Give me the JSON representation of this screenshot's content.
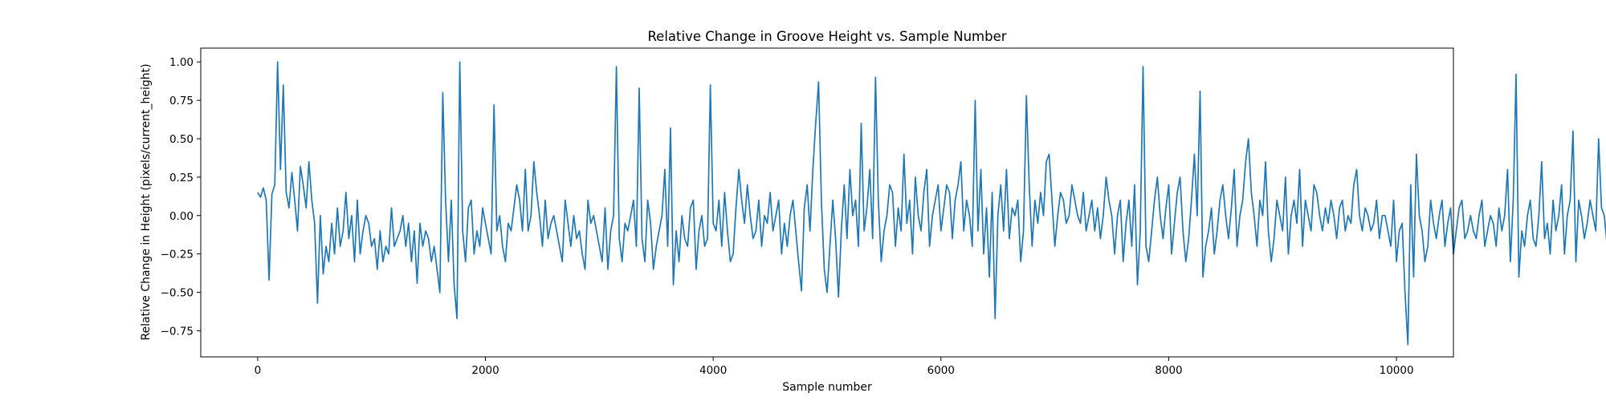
{
  "chart_data": {
    "type": "line",
    "title": "Relative Change in Groove Height vs. Sample Number",
    "xlabel": "Sample number",
    "ylabel": "Relative Change in Height (pixels/current_height)",
    "xlim": [
      -500,
      10500
    ],
    "ylim": [
      -0.92,
      1.09
    ],
    "x_ticks": [
      0,
      2000,
      4000,
      6000,
      8000,
      10000
    ],
    "x_tick_labels": [
      "0",
      "2000",
      "4000",
      "6000",
      "8000",
      "10000"
    ],
    "y_ticks": [
      1.0,
      0.75,
      0.5,
      0.25,
      0.0,
      -0.25,
      -0.5,
      -0.75
    ],
    "y_tick_labels": [
      "1.00",
      "0.75",
      "0.50",
      "0.25",
      "0.00",
      "−0.25",
      "−0.50",
      "−0.75"
    ],
    "grid": false,
    "legend": "none",
    "line_color": "#1f77b4",
    "series": [
      {
        "x_start": 0,
        "x_step": 25,
        "values": [
          0.15,
          0.12,
          0.18,
          0.1,
          -0.42,
          0.14,
          0.2,
          1.0,
          0.3,
          0.85,
          0.15,
          0.05,
          0.28,
          0.1,
          -0.1,
          0.32,
          0.2,
          0.05,
          0.35,
          0.1,
          -0.05,
          -0.57,
          0.0,
          -0.38,
          -0.2,
          -0.3,
          -0.05,
          -0.25,
          0.05,
          -0.2,
          -0.1,
          0.15,
          -0.15,
          0.0,
          -0.3,
          0.1,
          -0.25,
          -0.1,
          0.0,
          -0.05,
          -0.2,
          -0.15,
          -0.35,
          -0.1,
          -0.3,
          -0.2,
          -0.25,
          0.05,
          -0.2,
          -0.15,
          -0.1,
          0.0,
          -0.2,
          -0.05,
          -0.3,
          -0.1,
          -0.44,
          -0.05,
          -0.2,
          -0.1,
          -0.15,
          -0.3,
          -0.2,
          -0.35,
          -0.5,
          0.8,
          0.1,
          -0.3,
          0.1,
          -0.45,
          -0.67,
          1.0,
          -0.1,
          -0.3,
          0.05,
          0.1,
          -0.25,
          -0.1,
          -0.2,
          0.05,
          -0.05,
          -0.15,
          -0.25,
          0.72,
          -0.1,
          0.0,
          -0.2,
          -0.3,
          -0.05,
          -0.1,
          0.05,
          0.2,
          0.1,
          -0.1,
          0.3,
          -0.1,
          0.0,
          0.35,
          0.15,
          0.0,
          -0.2,
          0.1,
          -0.15,
          -0.05,
          0.0,
          -0.1,
          -0.2,
          -0.3,
          0.1,
          -0.05,
          -0.2,
          0.0,
          -0.15,
          -0.1,
          -0.25,
          -0.35,
          0.1,
          -0.05,
          0.0,
          -0.1,
          -0.2,
          -0.3,
          0.05,
          -0.35,
          -0.1,
          0.0,
          0.97,
          -0.15,
          -0.3,
          -0.05,
          -0.1,
          0.0,
          0.1,
          -0.2,
          0.83,
          -0.15,
          -0.3,
          0.1,
          -0.05,
          -0.35,
          -0.2,
          -0.1,
          0.0,
          0.3,
          -0.2,
          0.57,
          -0.45,
          -0.1,
          -0.3,
          0.0,
          -0.15,
          -0.2,
          0.05,
          0.1,
          -0.35,
          -0.1,
          0.0,
          -0.2,
          -0.15,
          0.85,
          -0.05,
          -0.1,
          0.1,
          -0.2,
          0.15,
          -0.1,
          -0.3,
          -0.25,
          0.05,
          0.3,
          0.1,
          -0.05,
          0.2,
          0.0,
          -0.15,
          -0.1,
          0.1,
          -0.2,
          0.0,
          -0.05,
          0.15,
          -0.1,
          0.0,
          0.1,
          -0.25,
          -0.05,
          -0.2,
          0.0,
          0.1,
          -0.1,
          -0.3,
          -0.49,
          0.05,
          0.2,
          -0.1,
          0.3,
          0.6,
          0.87,
          0.1,
          -0.35,
          -0.5,
          -0.2,
          0.1,
          -0.15,
          -0.53,
          -0.1,
          0.2,
          -0.15,
          0.3,
          0.0,
          0.1,
          -0.2,
          0.6,
          -0.1,
          0.05,
          0.3,
          -0.15,
          0.9,
          0.1,
          -0.3,
          -0.1,
          0.0,
          0.2,
          0.15,
          -0.2,
          0.05,
          -0.1,
          0.4,
          -0.05,
          0.1,
          -0.25,
          0.25,
          0.0,
          -0.1,
          0.15,
          0.3,
          -0.2,
          0.0,
          0.1,
          0.2,
          -0.1,
          0.05,
          0.2,
          0.15,
          -0.15,
          0.1,
          0.2,
          0.35,
          -0.1,
          0.1,
          0.0,
          -0.2,
          0.75,
          -0.1,
          0.3,
          -0.25,
          0.05,
          -0.4,
          0.15,
          -0.67,
          0.0,
          0.2,
          -0.1,
          0.3,
          -0.15,
          0.05,
          0.0,
          0.1,
          -0.3,
          -0.1,
          0.78,
          0.2,
          -0.2,
          0.1,
          -0.05,
          0.15,
          0.0,
          0.35,
          0.4,
          0.1,
          -0.2,
          0.0,
          0.15,
          0.1,
          -0.05,
          0.0,
          0.2,
          0.1,
          0.0,
          -0.05,
          0.15,
          -0.1,
          0.0,
          0.1,
          -0.1,
          0.05,
          -0.15,
          0.0,
          0.25,
          0.1,
          0.0,
          -0.25,
          0.0,
          0.1,
          -0.3,
          -0.05,
          0.1,
          -0.2,
          0.2,
          -0.45,
          -0.1,
          0.97,
          -0.2,
          -0.3,
          -0.1,
          0.1,
          0.25,
          0.0,
          -0.15,
          0.05,
          0.2,
          -0.25,
          -0.05,
          0.15,
          0.25,
          -0.1,
          -0.3,
          -0.15,
          0.1,
          0.4,
          0.0,
          0.81,
          -0.4,
          -0.2,
          -0.1,
          0.05,
          -0.25,
          -0.1,
          0.1,
          0.2,
          0.0,
          -0.15,
          0.05,
          0.3,
          -0.2,
          0.0,
          0.1,
          0.35,
          0.5,
          0.15,
          0.0,
          -0.2,
          0.1,
          0.0,
          0.35,
          -0.1,
          -0.3,
          -0.15,
          0.1,
          0.0,
          -0.1,
          0.25,
          -0.25,
          0.0,
          0.1,
          -0.05,
          0.3,
          -0.2,
          0.1,
          0.0,
          -0.1,
          0.2,
          0.15,
          0.0,
          -0.1,
          0.05,
          -0.05,
          0.1,
          0.0,
          -0.15,
          0.05,
          0.1,
          -0.1,
          0.0,
          -0.05,
          0.2,
          0.3,
          0.0,
          -0.1,
          0.05,
          0.0,
          -0.1,
          -0.05,
          0.1,
          -0.15,
          0.0,
          0.0,
          -0.1,
          -0.2,
          0.1,
          -0.3,
          -0.1,
          -0.05,
          -0.5,
          -0.84,
          0.2,
          -0.4,
          0.4,
          0.0,
          -0.1,
          -0.3,
          -0.2,
          0.1,
          -0.05,
          -0.15,
          0.0,
          0.1,
          -0.2,
          -0.05,
          0.05,
          -0.25,
          -0.1,
          0.05,
          0.1,
          -0.15,
          -0.1,
          0.0,
          -0.1,
          -0.15,
          0.0,
          0.1,
          -0.2,
          -0.1,
          0.0,
          -0.05,
          -0.2,
          0.05,
          -0.1,
          0.0,
          0.3,
          -0.3,
          0.1,
          0.92,
          -0.4,
          -0.1,
          -0.2,
          0.0,
          0.1,
          -0.15,
          -0.2,
          0.0,
          0.35,
          -0.15,
          -0.05,
          -0.25,
          0.1,
          -0.1,
          0.0,
          0.2,
          -0.25,
          0.0,
          0.1,
          0.55,
          -0.3,
          0.1,
          0.0,
          -0.15,
          -0.05,
          0.1,
          0.0,
          -0.1,
          0.5,
          0.05,
          0.0,
          -0.2,
          0.1,
          -0.05,
          0.0,
          -0.1,
          0.0,
          0.1,
          -0.1,
          0.0,
          0.25,
          -0.1,
          0.0,
          0.35,
          -0.05,
          0.1,
          -0.2,
          0.0,
          0.6,
          -0.1,
          0.0,
          0.1,
          -0.15,
          0.05,
          0.8,
          0.4,
          -0.15,
          -0.05,
          -0.3,
          -0.1,
          0.0,
          -0.4,
          -0.57,
          0.3,
          -0.1,
          -0.5,
          0.7,
          0.05,
          0.4,
          0.0,
          -0.15,
          0.1,
          -0.1,
          -0.2,
          0.05,
          0.15,
          0.0,
          -0.1,
          -0.2,
          0.1,
          0.0,
          -0.05,
          -0.15,
          0.1,
          -0.1,
          0.0,
          0.25,
          -0.1,
          0.0,
          0.5,
          -0.05,
          -0.2,
          0.0,
          0.1,
          -0.1,
          0.0,
          -0.05,
          0.0,
          -0.15,
          0.1,
          0.0,
          -0.2,
          0.05,
          -0.1,
          0.1,
          0.0,
          -0.1,
          0.05,
          0.2,
          0.0,
          -0.1,
          0.1,
          0.0,
          -0.2,
          -0.1,
          0.1,
          0.05,
          0.0,
          0.1,
          -0.1,
          0.15,
          0.05,
          -0.1,
          0.2,
          -0.4,
          1.0,
          0.1,
          -0.3,
          0.05,
          -0.2,
          0.1,
          -0.1,
          0.1,
          0.0,
          -0.15,
          0.15,
          -0.05,
          -0.1,
          0.2,
          0.05,
          0.0,
          -0.1,
          0.1,
          -0.3,
          -0.1,
          0.05,
          0.7,
          0.1,
          0.2,
          -0.3,
          0.0,
          -0.15,
          0.1,
          0.0,
          -0.2,
          -0.1,
          0.0,
          0.1,
          -0.05,
          0.0,
          -0.1,
          -0.2,
          0.05,
          0.2,
          -0.1,
          0.0,
          -0.15,
          0.1,
          -0.25,
          0.0,
          -0.1,
          0.05,
          0.1,
          -0.25,
          0.2,
          0.6,
          0.1,
          -0.3,
          -0.4,
          -0.1,
          0.2,
          -0.2,
          1.0,
          -0.35,
          -0.55,
          0.1,
          1.0,
          -0.2,
          -0.1,
          0.0,
          -0.1,
          0.1,
          -0.2,
          0.0,
          0.05,
          0.1,
          -0.1,
          0.8,
          0.0,
          -0.1,
          0.1,
          -0.2,
          0.0,
          -0.15,
          0.05,
          0.2,
          -0.1,
          0.0,
          -0.05,
          0.1,
          0.4,
          0.0,
          -0.15,
          0.05,
          0.1,
          -0.1,
          0.0,
          -0.05,
          0.2,
          -0.1,
          0.0,
          0.05,
          0.1,
          -0.2,
          0.0,
          0.1,
          -0.15,
          -0.5,
          0.2,
          -0.3,
          0.1,
          1.0,
          -0.2,
          -0.3,
          -0.1,
          0.1,
          0.0,
          -0.2,
          -0.65,
          0.0,
          0.1,
          -0.2,
          0.0,
          0.1,
          -0.1,
          0.0,
          0.05,
          -0.15,
          0.0,
          0.8,
          -0.1,
          0.1,
          0.2,
          -0.2,
          0.0,
          -0.1,
          0.0,
          0.1,
          0.0,
          -0.1,
          0.05,
          0.2,
          0.4,
          0.1,
          -0.2,
          0.0,
          0.1,
          -0.1,
          0.0,
          0.05,
          -0.1,
          0.0,
          0.1,
          -0.2,
          0.1,
          0.0,
          -0.1,
          0.1,
          0.0,
          1.0,
          0.5,
          0.9,
          -0.52,
          -0.3,
          0.0,
          -0.1,
          0.2,
          -0.2,
          -0.8,
          -0.1,
          -0.3,
          -0.2,
          -0.1,
          -0.25,
          0.0,
          -0.1
        ]
      }
    ]
  }
}
